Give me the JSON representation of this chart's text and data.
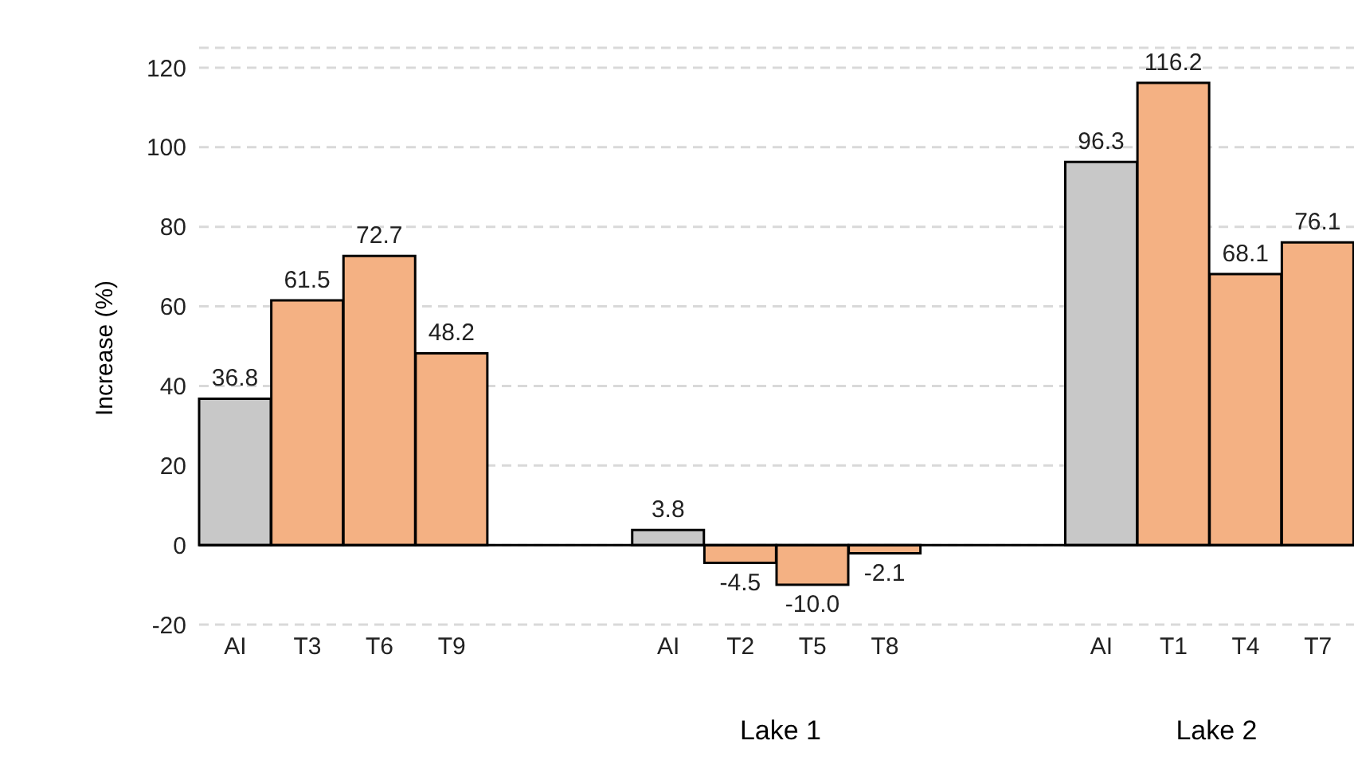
{
  "chart_data": {
    "type": "bar",
    "ylabel": "Increase (%)",
    "categories": [
      "AI",
      "T3",
      "T6",
      "T9",
      null,
      null,
      "AI",
      "T2",
      "T5",
      "T8",
      null,
      null,
      "AI",
      "T1",
      "T4",
      "T7"
    ],
    "values": [
      36.8,
      61.5,
      72.7,
      48.2,
      null,
      null,
      3.8,
      -4.5,
      -10.0,
      -2.1,
      null,
      null,
      96.3,
      116.2,
      68.1,
      76.1
    ],
    "value_labels": [
      "36.8",
      "61.5",
      "72.7",
      "48.2",
      null,
      null,
      "3.8",
      "-4.5",
      "-10.0",
      "-2.1",
      null,
      null,
      "96.3",
      "116.2",
      "68.1",
      "76.1"
    ],
    "colors": [
      "#c8c8c8",
      "#f4b183",
      "#f4b183",
      "#f4b183",
      null,
      null,
      "#c8c8c8",
      "#f4b183",
      "#f4b183",
      "#f4b183",
      null,
      null,
      "#c8c8c8",
      "#f4b183",
      "#f4b183",
      "#f4b183"
    ],
    "annotations": [
      "Lake 1",
      "Lake 2"
    ],
    "ylim": [
      -20,
      125
    ],
    "yticks": [
      -20,
      0,
      20,
      40,
      60,
      80,
      100,
      120
    ],
    "grid": "y"
  }
}
